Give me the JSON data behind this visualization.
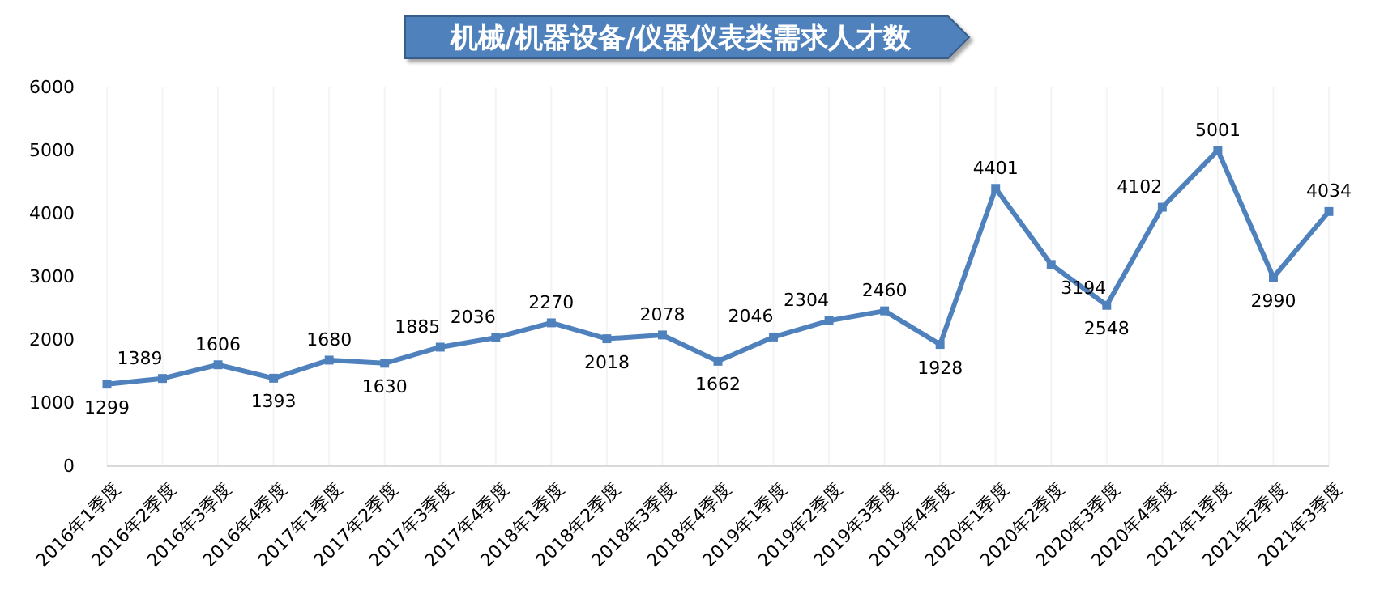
{
  "chart_data": {
    "type": "line",
    "title": "机械/机器设备/仪器仪表类需求人才数",
    "categories": [
      "2016年1季度",
      "2016年2季度",
      "2016年3季度",
      "2016年4季度",
      "2017年1季度",
      "2017年2季度",
      "2017年3季度",
      "2017年4季度",
      "2018年1季度",
      "2018年2季度",
      "2018年3季度",
      "2018年4季度",
      "2019年1季度",
      "2019年2季度",
      "2019年3季度",
      "2019年4季度",
      "2020年1季度",
      "2020年2季度",
      "2020年3季度",
      "2020年4季度",
      "2021年1季度",
      "2021年2季度",
      "2021年3季度"
    ],
    "series": [
      {
        "color": "#4f81bd",
        "values": [
          1299,
          1389,
          1606,
          1393,
          1680,
          1630,
          1885,
          2036,
          2270,
          2018,
          2078,
          1662,
          2046,
          2304,
          2460,
          1928,
          4401,
          3194,
          2548,
          4102,
          5001,
          2990,
          4034
        ]
      }
    ],
    "ylim": [
      0,
      6000
    ],
    "yticks": [
      0,
      1000,
      2000,
      3000,
      4000,
      5000,
      6000
    ],
    "grid": "x",
    "marker": "square",
    "line_style": "solid",
    "data_labels": true
  }
}
